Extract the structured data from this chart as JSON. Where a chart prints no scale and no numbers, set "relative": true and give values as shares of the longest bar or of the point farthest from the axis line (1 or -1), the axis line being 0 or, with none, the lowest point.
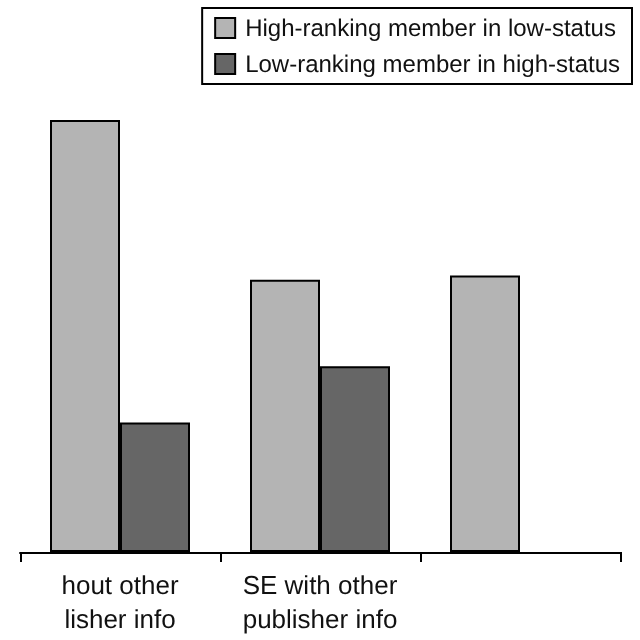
{
  "chart_data": {
    "type": "bar",
    "relative": true,
    "categories": [
      "hout other\nlisher info",
      "SE with other\npublisher info",
      null
    ],
    "series": [
      {
        "name": "High-ranking member in low-status",
        "color": "#b4b4b4",
        "values": [
          1,
          0.63,
          0.64
        ]
      },
      {
        "name": "Low-ranking member in high-status",
        "color": "#666666",
        "values": [
          0.3,
          0.43,
          null
        ]
      }
    ],
    "legend": "top right"
  }
}
